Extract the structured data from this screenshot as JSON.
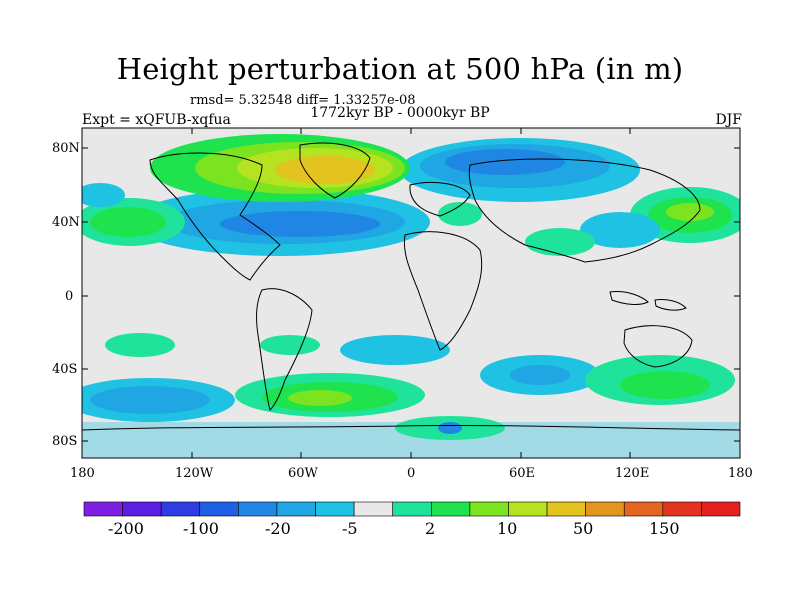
{
  "title": "Height perturbation at 500 hPa (in m)",
  "stats_line": "rmsd= 5.32548 diff= 1.33257e-08",
  "period_line": "1772kyr BP - 0000kyr BP",
  "experiment_line": "Expt = xQFUB-xqfua",
  "season": "DJF",
  "lat_labels": [
    "80N",
    "40N",
    "0",
    "40S",
    "80S"
  ],
  "lon_labels": [
    "180",
    "120W",
    "60W",
    "0",
    "60E",
    "120E",
    "180"
  ],
  "colorbar": {
    "colors": [
      "#7f1fe3",
      "#5a1fe3",
      "#2d3de3",
      "#1f5fe3",
      "#1f86e3",
      "#1fa6e3",
      "#1fc2e3",
      "#e8e8e8",
      "#1fe39a",
      "#1fe34e",
      "#7be31f",
      "#b6e31f",
      "#e3c31f",
      "#e3951f",
      "#e3651f",
      "#e3341f",
      "#e31f1f"
    ],
    "tick_labels": [
      "-200",
      "-100",
      "-20",
      "-5",
      "2",
      "10",
      "50",
      "150"
    ]
  }
}
